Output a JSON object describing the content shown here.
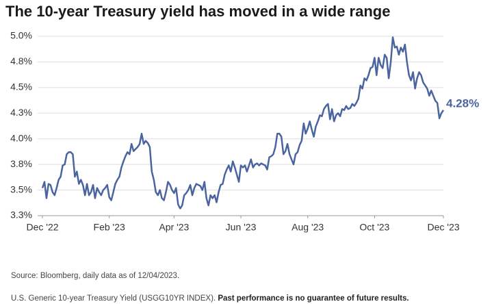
{
  "chart_data": {
    "type": "line",
    "title": "The 10-year Treasury yield has moved in a wide range",
    "series": [
      {
        "name": "10-year Treasury yield",
        "color": "#4a64a0",
        "values": [
          3.52,
          3.58,
          3.42,
          3.56,
          3.55,
          3.48,
          3.45,
          3.52,
          3.6,
          3.63,
          3.74,
          3.75,
          3.85,
          3.87,
          3.87,
          3.85,
          3.63,
          3.68,
          3.56,
          3.6,
          3.55,
          3.45,
          3.56,
          3.45,
          3.48,
          3.55,
          3.42,
          3.52,
          3.48,
          3.45,
          3.5,
          3.52,
          3.55,
          3.43,
          3.4,
          3.48,
          3.56,
          3.6,
          3.63,
          3.72,
          3.78,
          3.83,
          3.87,
          3.85,
          3.95,
          3.88,
          3.9,
          3.92,
          3.95,
          4.05,
          3.95,
          3.98,
          3.96,
          3.92,
          3.68,
          3.6,
          3.48,
          3.45,
          3.5,
          3.42,
          3.4,
          3.48,
          3.58,
          3.55,
          3.5,
          3.47,
          3.52,
          3.36,
          3.32,
          3.35,
          3.45,
          3.47,
          3.5,
          3.55,
          3.45,
          3.52,
          3.56,
          3.55,
          3.54,
          3.5,
          3.58,
          3.42,
          3.35,
          3.45,
          3.42,
          3.45,
          3.38,
          3.48,
          3.55,
          3.56,
          3.65,
          3.7,
          3.74,
          3.68,
          3.78,
          3.72,
          3.65,
          3.58,
          3.74,
          3.72,
          3.74,
          3.68,
          3.74,
          3.8,
          3.72,
          3.75,
          3.76,
          3.74,
          3.76,
          3.75,
          3.74,
          3.7,
          3.82,
          3.83,
          3.85,
          3.92,
          4.05,
          4.05,
          4.02,
          3.85,
          3.88,
          3.95,
          3.85,
          3.8,
          3.75,
          3.85,
          3.87,
          3.94,
          3.98,
          4.15,
          4.05,
          4.1,
          4.17,
          4.09,
          4.02,
          4.12,
          4.17,
          4.23,
          4.22,
          4.29,
          4.32,
          4.34,
          4.19,
          4.29,
          4.17,
          4.23,
          4.25,
          4.22,
          4.29,
          4.28,
          4.32,
          4.29,
          4.3,
          4.34,
          4.32,
          4.35,
          4.39,
          4.52,
          4.49,
          4.59,
          4.57,
          4.62,
          4.69,
          4.7,
          4.79,
          4.62,
          4.79,
          4.72,
          4.69,
          4.82,
          4.79,
          4.59,
          4.75,
          4.99,
          4.89,
          4.9,
          4.82,
          4.89,
          4.85,
          4.92,
          4.75,
          4.62,
          4.57,
          4.65,
          4.49,
          4.59,
          4.65,
          4.62,
          4.55,
          4.52,
          4.49,
          4.42,
          4.47,
          4.42,
          4.37,
          4.35,
          4.2,
          4.25,
          4.28
        ]
      }
    ],
    "end_label": "4.28%",
    "xlim": [
      0,
      198
    ],
    "xticks": [
      {
        "value": 0,
        "label": "Dec '22"
      },
      {
        "value": 33,
        "label": "Feb '23"
      },
      {
        "value": 65,
        "label": "Apr '23"
      },
      {
        "value": 98,
        "label": "Jun '23"
      },
      {
        "value": 131,
        "label": "Aug '23"
      },
      {
        "value": 164,
        "label": "Oct '23"
      },
      {
        "value": 198,
        "label": "Dec '23"
      }
    ],
    "ylim": [
      3.25,
      5.0
    ],
    "yticks": [
      {
        "value": 3.25,
        "label": "3.3%"
      },
      {
        "value": 3.5,
        "label": "3.5%"
      },
      {
        "value": 3.75,
        "label": "3.8%"
      },
      {
        "value": 4.0,
        "label": "4.0%"
      },
      {
        "value": 4.25,
        "label": "4.3%"
      },
      {
        "value": 4.5,
        "label": "4.5%"
      },
      {
        "value": 4.75,
        "label": "4.8%"
      },
      {
        "value": 5.0,
        "label": "5.0%"
      }
    ],
    "grid": true
  },
  "notes": {
    "source": "Source: Bloomberg, daily data as of 12/04/2023.",
    "footnote": "U.S. Generic 10-year Treasury Yield (USGG10YR INDEX).",
    "disclaimer": "Past performance is no guarantee of future results."
  }
}
